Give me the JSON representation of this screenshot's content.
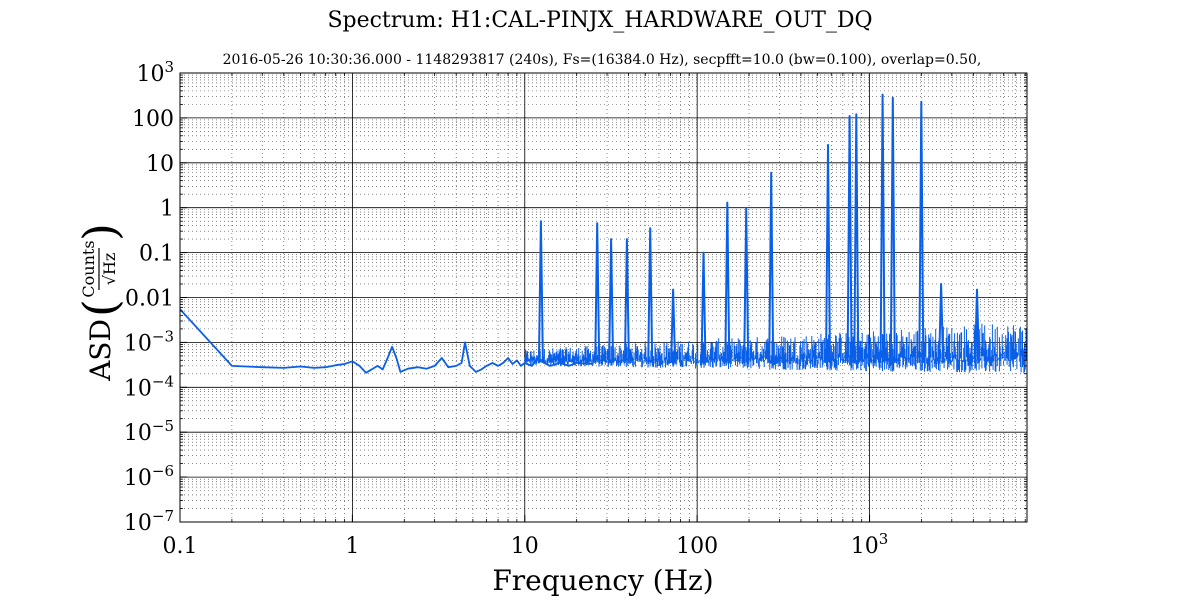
{
  "chart_data": {
    "type": "line",
    "title": "Spectrum: H1:CAL-PINJX_HARDWARE_OUT_DQ",
    "subtitle": "2016-05-26 10:30:36.000 - 1148293817 (240s), Fs=(16384.0 Hz), secpfft=10.0 (bw=0.100), overlap=0.50,",
    "xlabel": "Frequency (Hz)",
    "ylabel": "ASD",
    "ylabel_units": {
      "numerator": "Counts",
      "denominator": "√Hz"
    },
    "xscale": "log",
    "yscale": "log",
    "xlim": [
      0.1,
      8192
    ],
    "ylim": [
      1e-07,
      1000
    ],
    "grid": true,
    "x_ticks": [
      {
        "value": 0.1,
        "label": "0.1"
      },
      {
        "value": 1,
        "label": "1"
      },
      {
        "value": 10,
        "label": "10"
      },
      {
        "value": 100,
        "label": "100"
      },
      {
        "value": 1000,
        "label": "10",
        "exp": "3"
      }
    ],
    "y_ticks": [
      {
        "value": 1e-07,
        "label": "10",
        "exp": "−7"
      },
      {
        "value": 1e-06,
        "label": "10",
        "exp": "−6"
      },
      {
        "value": 1e-05,
        "label": "10",
        "exp": "−5"
      },
      {
        "value": 0.0001,
        "label": "10",
        "exp": "−4"
      },
      {
        "value": 0.001,
        "label": "10",
        "exp": "−3"
      },
      {
        "value": 0.01,
        "label": "0.01"
      },
      {
        "value": 0.1,
        "label": "0.1"
      },
      {
        "value": 1,
        "label": "1"
      },
      {
        "value": 10,
        "label": "10"
      },
      {
        "value": 100,
        "label": "100"
      },
      {
        "value": 1000,
        "label": "10",
        "exp": "3"
      }
    ],
    "series": [
      {
        "color": "#0a5fe8",
        "baseline_points": [
          [
            0.1,
            0.0055
          ],
          [
            0.2,
            0.0003
          ],
          [
            0.3,
            0.00028
          ],
          [
            0.4,
            0.00027
          ],
          [
            0.5,
            0.00029
          ],
          [
            0.6,
            0.00027
          ],
          [
            0.7,
            0.00028
          ],
          [
            0.8,
            0.00031
          ],
          [
            0.9,
            0.00033
          ],
          [
            1.0,
            0.00038
          ],
          [
            1.1,
            0.0003
          ],
          [
            1.2,
            0.00021
          ],
          [
            1.4,
            0.0003
          ],
          [
            1.5,
            0.00025
          ],
          [
            1.6,
            0.00045
          ],
          [
            1.7,
            0.0008
          ],
          [
            1.8,
            0.00045
          ],
          [
            1.9,
            0.00022
          ],
          [
            2.1,
            0.00026
          ],
          [
            2.4,
            0.00028
          ],
          [
            2.7,
            0.00026
          ],
          [
            3.0,
            0.0003
          ],
          [
            3.3,
            0.00045
          ],
          [
            3.6,
            0.00028
          ],
          [
            4.0,
            0.0003
          ],
          [
            4.3,
            0.00035
          ],
          [
            4.5,
            0.001
          ],
          [
            4.8,
            0.0003
          ],
          [
            5.2,
            0.00022
          ],
          [
            5.6,
            0.00025
          ],
          [
            6.0,
            0.0003
          ],
          [
            6.5,
            0.00035
          ],
          [
            7.0,
            0.0003
          ],
          [
            7.5,
            0.00035
          ],
          [
            8.0,
            0.00045
          ],
          [
            8.5,
            0.00033
          ],
          [
            9.0,
            0.0004
          ],
          [
            9.5,
            0.0003
          ],
          [
            10,
            0.00035
          ],
          [
            11,
            0.0003
          ],
          [
            12,
            0.00045
          ],
          [
            13,
            0.00035
          ],
          [
            14,
            0.0003
          ],
          [
            16,
            0.00035
          ],
          [
            18,
            0.0003
          ],
          [
            20,
            0.00035
          ],
          [
            25,
            0.00033
          ]
        ],
        "noise_band": {
          "x_from": 10,
          "x_to": 8192,
          "floor_start": 0.0003,
          "floor_end": 0.0002,
          "top_start": 0.0007,
          "top_end": 0.003
        },
        "peaks": [
          {
            "x": 12.4,
            "y": 0.5
          },
          {
            "x": 26.3,
            "y": 0.45
          },
          {
            "x": 31.7,
            "y": 0.2
          },
          {
            "x": 39.1,
            "y": 0.2
          },
          {
            "x": 53.4,
            "y": 0.35
          },
          {
            "x": 72.5,
            "y": 0.015
          },
          {
            "x": 108.9,
            "y": 0.1
          },
          {
            "x": 149.6,
            "y": 1.3
          },
          {
            "x": 192.5,
            "y": 1.0
          },
          {
            "x": 269.0,
            "y": 6.0
          },
          {
            "x": 574.0,
            "y": 25
          },
          {
            "x": 766.0,
            "y": 110
          },
          {
            "x": 838.0,
            "y": 120
          },
          {
            "x": 1190.0,
            "y": 330
          },
          {
            "x": 1365.0,
            "y": 280
          },
          {
            "x": 1995.0,
            "y": 230
          },
          {
            "x": 2600.0,
            "y": 0.02
          },
          {
            "x": 4200.0,
            "y": 0.015
          }
        ]
      }
    ]
  }
}
